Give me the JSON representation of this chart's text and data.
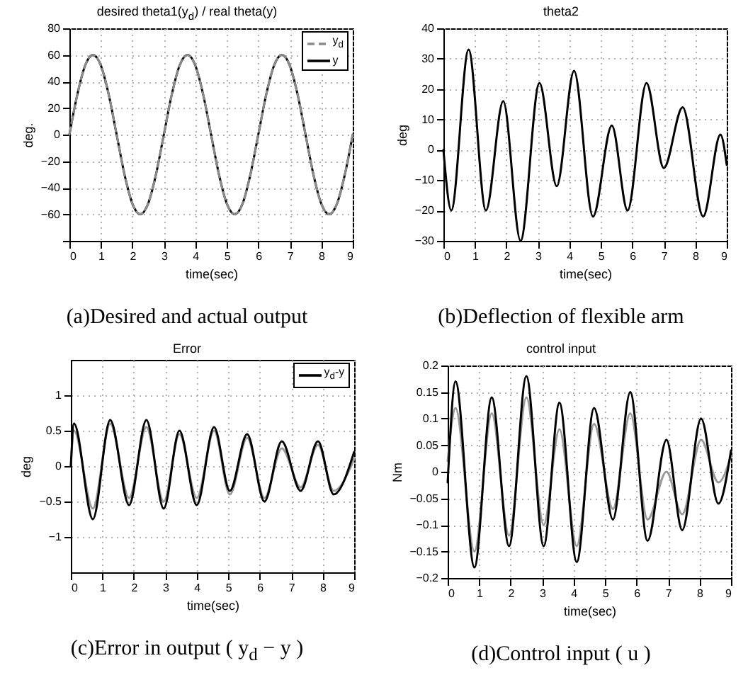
{
  "chart_data": [
    {
      "type": "line",
      "title": "desired theta1(y$_{d}$) / real theta(y)",
      "xlabel": "time(sec)",
      "ylabel": "deg.",
      "annotations": [
        "(a)Desired and actual output"
      ],
      "x": [
        0,
        0.25,
        0.5,
        0.75,
        1,
        1.25,
        1.5,
        1.75,
        2,
        2.25,
        2.5,
        2.75,
        3,
        3.25,
        3.5,
        3.75,
        4,
        4.25,
        4.5,
        4.75,
        5,
        5.25,
        5.5,
        5.75,
        6,
        6.25,
        6.5,
        6.75,
        7,
        7.25,
        7.5,
        7.75,
        8,
        8.25,
        8.5,
        8.75,
        9
      ],
      "series": [
        {
          "name": "y$_{d}$",
          "color": "#8c8c8c",
          "line_style": "dashed",
          "values": [
            0,
            30,
            52,
            60,
            52,
            30,
            0,
            -30,
            -52,
            -60,
            -52,
            -30,
            0,
            30,
            52,
            60,
            52,
            30,
            0,
            -30,
            -52,
            -60,
            -52,
            -30,
            0,
            30,
            52,
            60,
            52,
            30,
            0,
            -30,
            -52,
            -60,
            -52,
            -30,
            0
          ]
        },
        {
          "name": "y",
          "color": "#000000",
          "line_style": "solid",
          "values": [
            0,
            30,
            52,
            60,
            52,
            30,
            0,
            -30,
            -52,
            -60,
            -52,
            -30,
            0,
            30,
            52,
            60,
            52,
            30,
            0,
            -30,
            -52,
            -60,
            -52,
            -30,
            0,
            30,
            52,
            60,
            52,
            30,
            0,
            -30,
            -52,
            -60,
            -52,
            -30,
            0
          ]
        }
      ],
      "xlim": [
        0,
        9
      ],
      "xticks": [
        0,
        1,
        2,
        3,
        4,
        5,
        6,
        7,
        8,
        9
      ],
      "ylim": [
        -80,
        80
      ],
      "yticks": [
        {
          "value": -80,
          "label": null
        },
        -60,
        -40,
        -20,
        0,
        20,
        40,
        60,
        80
      ],
      "grid": true,
      "legend": "top right"
    },
    {
      "type": "line",
      "title": "theta2",
      "xlabel": "time(sec)",
      "ylabel": "deg",
      "annotations": [
        "(b)Deflection of flexible arm"
      ],
      "x": [
        0,
        0.25,
        0.8,
        1.35,
        1.9,
        2.45,
        3.05,
        3.6,
        4.15,
        4.75,
        5.35,
        5.85,
        6.45,
        7.0,
        7.6,
        8.25,
        8.8,
        9
      ],
      "series": [
        {
          "color": "#000000",
          "values": [
            0,
            -20,
            33,
            -20,
            16,
            -30,
            22,
            -12,
            26,
            -22,
            8,
            -20,
            22,
            -6,
            14,
            -22,
            5,
            -5
          ]
        }
      ],
      "xlim": [
        0,
        9
      ],
      "xticks": [
        0,
        1,
        2,
        3,
        4,
        5,
        6,
        7,
        8,
        9
      ],
      "ylim": [
        -30,
        40
      ],
      "yticks": [
        -30,
        -20,
        -10,
        0,
        10,
        20,
        30,
        40
      ],
      "grid": true
    },
    {
      "type": "line",
      "title": "Error",
      "xlabel": "time(sec)",
      "ylabel": "deg",
      "annotations": [
        "(c)Error in output ( y$_{d}$ − y )"
      ],
      "x": [
        0,
        0.1,
        0.7,
        1.25,
        1.85,
        2.4,
        2.95,
        3.45,
        4.0,
        4.55,
        5.05,
        5.6,
        6.15,
        6.7,
        7.3,
        7.85,
        8.35,
        9
      ],
      "series": [
        {
          "name": "y$_{d}$-y",
          "color": "#000000",
          "values": [
            0,
            0.6,
            -0.75,
            0.65,
            -0.55,
            0.65,
            -0.6,
            0.5,
            -0.55,
            0.55,
            -0.35,
            0.45,
            -0.5,
            0.35,
            -0.35,
            0.35,
            -0.4,
            0.2
          ]
        },
        {
          "color": "#9a9a9a",
          "values": [
            0,
            0.5,
            -0.6,
            0.6,
            -0.45,
            0.55,
            -0.5,
            0.45,
            -0.45,
            0.5,
            -0.4,
            0.4,
            -0.45,
            0.25,
            -0.3,
            0.3,
            -0.35,
            0.1
          ]
        }
      ],
      "xlim": [
        0,
        9
      ],
      "xticks": [
        0,
        1,
        2,
        3,
        4,
        5,
        6,
        7,
        8,
        9
      ],
      "ylim": [
        -1.5,
        1.5
      ],
      "yticks": [
        -1,
        -0.5,
        0,
        0.5,
        1
      ],
      "grid": true,
      "legend": "top right"
    },
    {
      "type": "line",
      "title": "control input",
      "xlabel": "time(sec)",
      "ylabel": "Nm",
      "annotations": [
        "(d)Control input ( u )"
      ],
      "x": [
        0,
        0.25,
        0.85,
        1.4,
        1.95,
        2.5,
        3.05,
        3.55,
        4.1,
        4.65,
        5.25,
        5.8,
        6.35,
        6.95,
        7.45,
        8.05,
        8.6,
        9
      ],
      "series": [
        {
          "color": "#000000",
          "values": [
            -0.02,
            0.17,
            -0.18,
            0.14,
            -0.14,
            0.18,
            -0.14,
            0.13,
            -0.17,
            0.12,
            -0.09,
            0.15,
            -0.13,
            0.06,
            -0.11,
            0.1,
            -0.06,
            0.04
          ]
        },
        {
          "color": "#9a9a9a",
          "values": [
            0.02,
            0.12,
            -0.15,
            0.11,
            -0.12,
            0.14,
            -0.1,
            0.08,
            -0.14,
            0.09,
            -0.07,
            0.11,
            -0.09,
            0,
            -0.08,
            0.06,
            -0.02,
            0.03
          ]
        }
      ],
      "xlim": [
        0,
        9
      ],
      "xticks": [
        0,
        1,
        2,
        3,
        4,
        5,
        6,
        7,
        8,
        9
      ],
      "ylim": [
        -0.2,
        0.2
      ],
      "yticks": [
        -0.2,
        -0.15,
        -0.1,
        -0.05,
        0,
        0.05,
        0.1,
        0.15,
        0.2
      ],
      "grid": true
    }
  ]
}
